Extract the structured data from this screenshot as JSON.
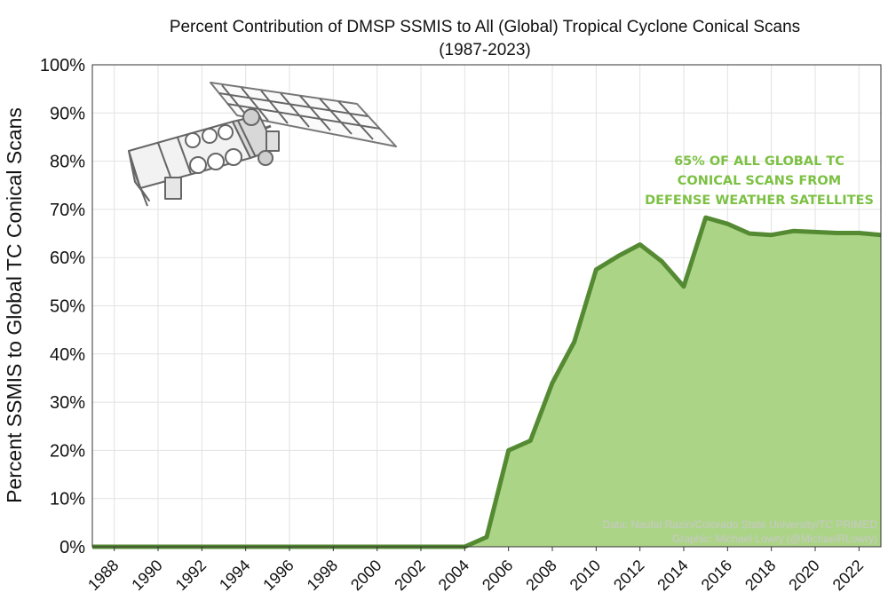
{
  "chart_data": {
    "type": "area",
    "title": "Percent Contribution of DMSP SSMIS to All (Global) Tropical Cyclone Conical Scans",
    "subtitle": "(1987-2023)",
    "ylabel": "Percent SSMIS to Global TC Conical Scans",
    "xlabel": "",
    "xlim": [
      1987,
      2023
    ],
    "ylim": [
      0,
      100
    ],
    "yticks": [
      "0%",
      "10%",
      "20%",
      "30%",
      "40%",
      "50%",
      "60%",
      "70%",
      "80%",
      "90%",
      "100%"
    ],
    "xticks": [
      "1988",
      "1990",
      "1992",
      "1994",
      "1996",
      "1998",
      "2000",
      "2002",
      "2004",
      "2006",
      "2008",
      "2010",
      "2012",
      "2014",
      "2016",
      "2018",
      "2020",
      "2022"
    ],
    "grid": true,
    "series": [
      {
        "x": [
          1987,
          1988,
          1989,
          1990,
          1991,
          1992,
          1993,
          1994,
          1995,
          1996,
          1997,
          1998,
          1999,
          2000,
          2001,
          2002,
          2003,
          2004,
          2005,
          2006,
          2007,
          2008,
          2009,
          2010,
          2011,
          2012,
          2013,
          2014,
          2015,
          2016,
          2017,
          2018,
          2019,
          2020,
          2021,
          2022,
          2023
        ],
        "values": [
          0,
          0,
          0,
          0,
          0,
          0,
          0,
          0,
          0,
          0,
          0,
          0,
          0,
          0,
          0,
          0,
          0,
          0,
          2,
          20,
          22,
          34,
          42.5,
          57.5,
          60.3,
          62.7,
          59.2,
          54,
          68.3,
          67,
          65,
          64.7,
          65.5,
          65.3,
          65.1,
          65.1,
          64.7
        ]
      }
    ],
    "colors": {
      "line": "#548a32",
      "fill": "#acd487",
      "annotation": "#7cc143"
    },
    "annotation": [
      "65% OF ALL GLOBAL TC",
      "CONICAL SCANS FROM",
      "DEFENSE WEATHER SATELLITES"
    ],
    "credits": [
      "Data: Naufal Razin/Colorado State University/TC PRIMED",
      "Graphic: Michael Lowry (@MichaelRLowry)"
    ],
    "icon": "satellite-icon"
  }
}
